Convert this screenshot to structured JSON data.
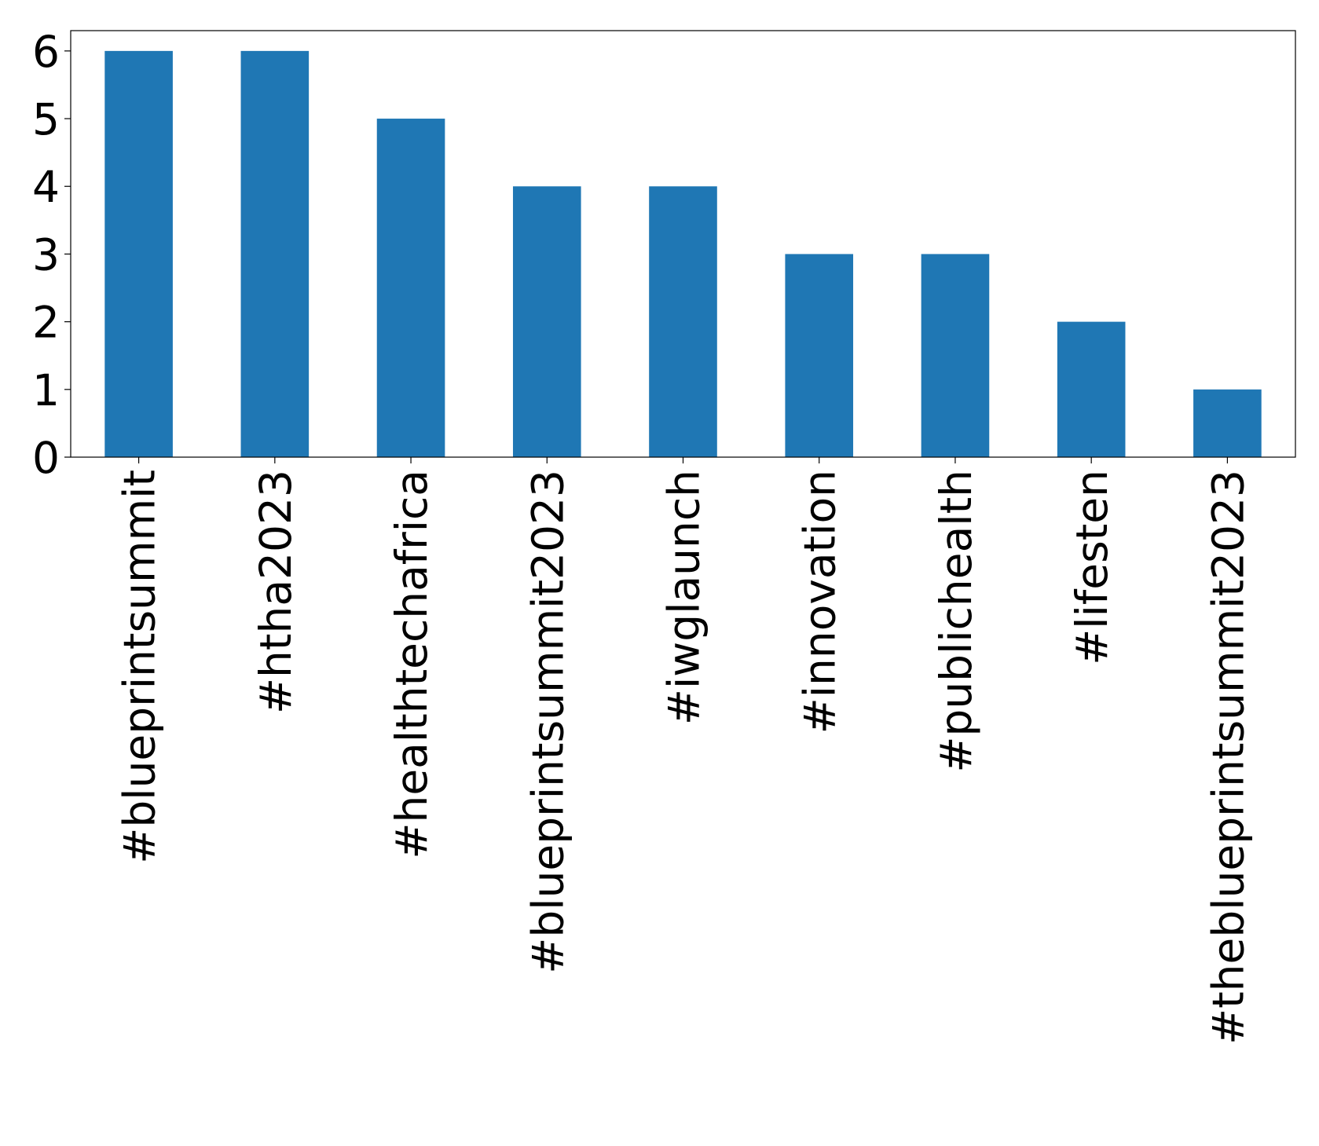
{
  "chart_data": {
    "type": "bar",
    "title": "",
    "xlabel": "",
    "ylabel": "",
    "categories": [
      "#blueprintsummit",
      "#htha2023",
      "#healthtechafrica",
      "#blueprintsummit2023",
      "#iwglaunch",
      "#innovation",
      "#publichealth",
      "#lifesten",
      "#theblueprintsummit2023"
    ],
    "values": [
      6,
      6,
      5,
      4,
      4,
      3,
      3,
      2,
      1
    ],
    "ylim": [
      0,
      6.3
    ],
    "yticks": [
      0,
      1,
      2,
      3,
      4,
      5,
      6
    ],
    "grid": false,
    "legend": "none",
    "bar_color": "#1f77b4",
    "axis_color": "#000000"
  }
}
